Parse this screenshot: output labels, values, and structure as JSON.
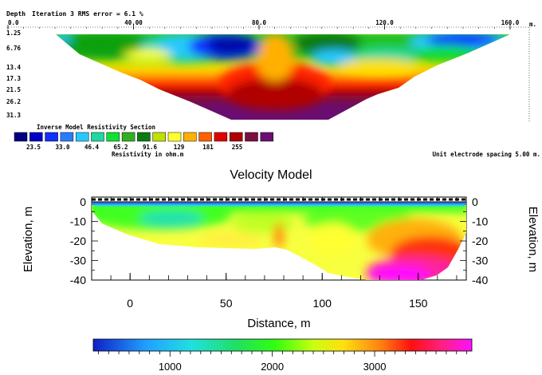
{
  "chart_data": [
    {
      "type": "heatmap",
      "panel": "resistivity",
      "header_depth_label": "Depth",
      "header_caption": "Iteration 3 RMS error = 6.1 %",
      "x_ticks": [
        "0.0",
        "40.00",
        "80.0",
        "120.0",
        "160.0"
      ],
      "x_unit": "m.",
      "depth_ticks": [
        "1.25",
        "6.76",
        "13.4",
        "17.3",
        "21.5",
        "26.2",
        "31.3"
      ],
      "legend_title": "Inverse Model Resistivity Section",
      "legend_labels": [
        "23.5",
        "33.0",
        "46.4",
        "65.2",
        "91.6",
        "129",
        "181",
        "255"
      ],
      "legend_colors": [
        "#000080",
        "#0000c8",
        "#1030ff",
        "#2a7cff",
        "#28c8ff",
        "#20d8a0",
        "#10e030",
        "#30b020",
        "#0a7a10",
        "#c0e000",
        "#ffff30",
        "#ffb000",
        "#ff6000",
        "#e00000",
        "#b00000",
        "#7a1040",
        "#6a1070"
      ],
      "legend_unit": "Resistivity in ohm.m",
      "spacing_note": "Unit electrode spacing 5.00 m.",
      "x_range": [
        0,
        160
      ],
      "depth_range": [
        1.25,
        31.3
      ]
    },
    {
      "type": "heatmap",
      "panel": "velocity",
      "title": "Velocity Model",
      "xlabel": "Distance,  m",
      "ylabel_left": "Elevation, m",
      "ylabel_right": "Elevation, m",
      "xticks": [
        "0",
        "50",
        "100",
        "150"
      ],
      "yticks": [
        "0",
        "-10",
        "-20",
        "-30",
        "-40"
      ],
      "xlim": [
        -20,
        175
      ],
      "ylim": [
        -40,
        0
      ],
      "colorbar_ticks": [
        "1000",
        "2000",
        "3000"
      ],
      "colorbar_range": [
        250,
        3950
      ]
    }
  ]
}
